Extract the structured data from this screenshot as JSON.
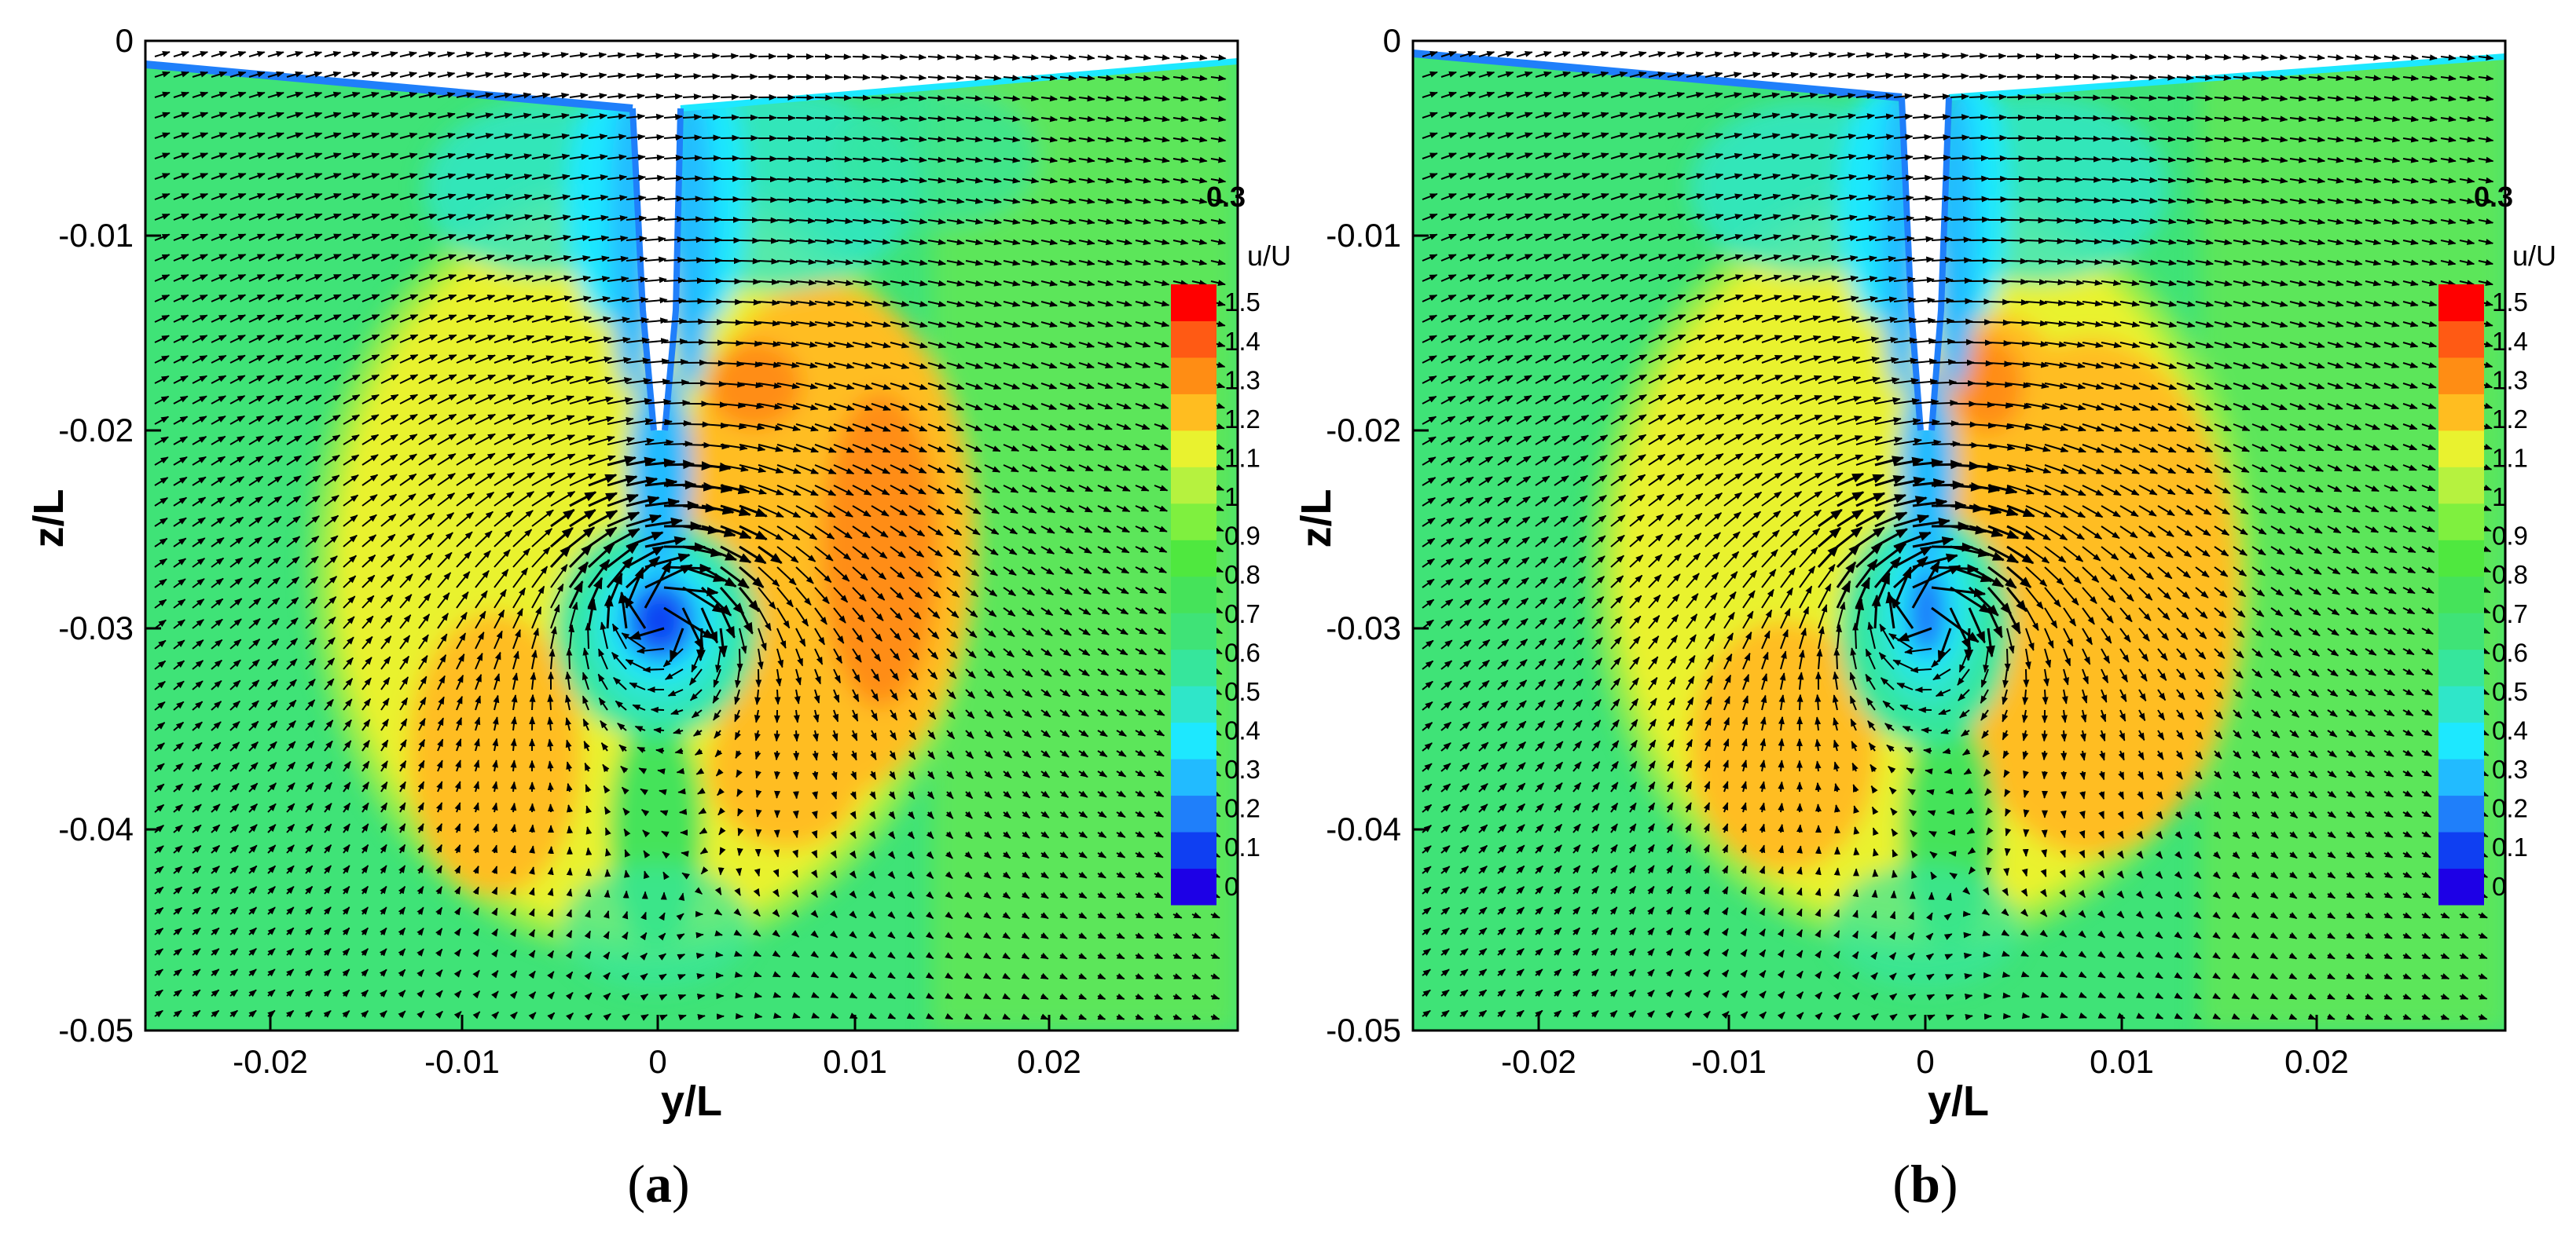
{
  "chart_data": [
    {
      "type": "contour",
      "panel_label": "a",
      "xlabel": "y/L",
      "ylabel": "z/L",
      "xlim": [
        -0.026,
        0.029
      ],
      "ylim": [
        -0.05,
        0
      ],
      "x_ticks": [
        "-0.02",
        "-0.01",
        "0",
        "0.01",
        "0.02"
      ],
      "y_ticks": [
        "0",
        "-0.01",
        "-0.02",
        "-0.03",
        "-0.04",
        "-0.05"
      ],
      "colorbar": {
        "title": "u/U",
        "ticks": [
          "1.5",
          "1.4",
          "1.3",
          "1.2",
          "1.1",
          "1",
          "0.9",
          "0.8",
          "0.7",
          "0.6",
          "0.5",
          "0.4",
          "0.3",
          "0.2",
          "0.1",
          "0"
        ]
      },
      "reference_vector_label": "0.3",
      "features": {
        "low_velocity_core": {
          "y": -0.0003,
          "z": -0.0295
        },
        "high_velocity_lobes": [
          {
            "y": 0.009,
            "z": -0.027,
            "peak": 1.4
          },
          {
            "y": -0.009,
            "z": -0.037,
            "peak": 1.35
          },
          {
            "y": 0.005,
            "z": -0.038,
            "peak": 1.3
          }
        ]
      }
    },
    {
      "type": "contour",
      "panel_label": "b",
      "xlabel": "y/L",
      "ylabel": "z/L",
      "xlim": [
        -0.026,
        0.029
      ],
      "ylim": [
        -0.05,
        0
      ],
      "x_ticks": [
        "-0.02",
        "-0.01",
        "0",
        "0.01",
        "0.02"
      ],
      "y_ticks": [
        "0",
        "-0.01",
        "-0.02",
        "-0.03",
        "-0.04",
        "-0.05"
      ],
      "colorbar": {
        "title": "u/U",
        "ticks": [
          "1.5",
          "1.4",
          "1.3",
          "1.2",
          "1.1",
          "1",
          "0.9",
          "0.8",
          "0.7",
          "0.6",
          "0.5",
          "0.4",
          "0.3",
          "0.2",
          "0.1",
          "0"
        ]
      },
      "reference_vector_label": "0.3",
      "features": {
        "low_velocity_core": {
          "y": -0.0003,
          "z": -0.029
        },
        "high_velocity_lobes": [
          {
            "y": 0.009,
            "z": -0.03,
            "peak": 1.3
          },
          {
            "y": -0.007,
            "z": -0.036,
            "peak": 1.3
          },
          {
            "y": 0.003,
            "z": -0.018,
            "peak": 1.35
          }
        ]
      }
    }
  ],
  "colors": {
    "scale": [
      "#1d00e6",
      "#0f3ff2",
      "#1f7ffa",
      "#22bbff",
      "#1de8ff",
      "#2fe6c9",
      "#36e69c",
      "#3fe377",
      "#45e35a",
      "#4fe83f",
      "#7ff03f",
      "#b6f23f",
      "#e9f22f",
      "#ffbd20",
      "#ff8d14",
      "#ff5a14",
      "#ff0000"
    ],
    "background_field": "#3fe377"
  }
}
